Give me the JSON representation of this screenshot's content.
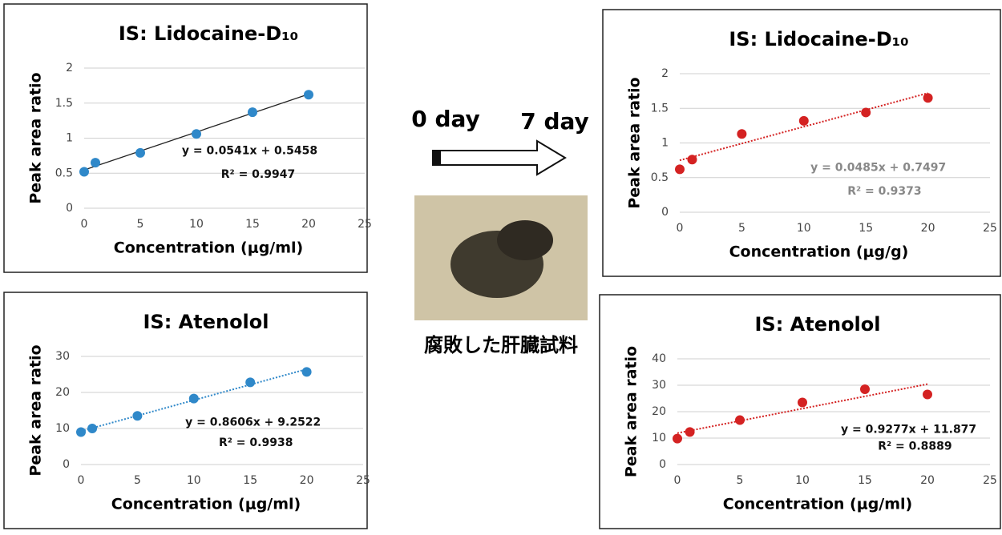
{
  "chart_data": [
    {
      "type": "scatter",
      "title": "IS: Lidocaine-D₁₀",
      "x_label": "Concentration (μg/ml)",
      "y_label": "Peak area ratio",
      "x": [
        0,
        1,
        5,
        10,
        15,
        20
      ],
      "values": [
        0.52,
        0.65,
        0.79,
        1.06,
        1.37,
        1.62
      ],
      "color": "#2f88c9",
      "xlim": [
        0,
        25
      ],
      "xticks": [
        0,
        5,
        10,
        15,
        20,
        25
      ],
      "ylim": [
        0,
        2
      ],
      "yticks": [
        0,
        0.5,
        1,
        1.5,
        2
      ],
      "grid": true,
      "trendline": {
        "slope": 0.0541,
        "intercept": 0.5458,
        "style": "solid",
        "color": "#222222"
      },
      "equation": "y = 0.0541x + 0.5458",
      "r_squared": "R² = 0.9947",
      "equation_color": "#111111"
    },
    {
      "type": "scatter",
      "title": "IS: Atenolol",
      "x_label": "Concentration (μg/ml)",
      "y_label": "Peak area ratio",
      "x": [
        0,
        1,
        5,
        10,
        15,
        20
      ],
      "values": [
        9,
        10,
        13.5,
        18.3,
        22.8,
        25.7
      ],
      "color": "#2f88c9",
      "xlim": [
        0,
        25
      ],
      "xticks": [
        0,
        5,
        10,
        15,
        20,
        25
      ],
      "ylim": [
        0,
        30
      ],
      "yticks": [
        0,
        10,
        20,
        30
      ],
      "grid": true,
      "trendline": {
        "slope": 0.8606,
        "intercept": 9.2522,
        "style": "dotted",
        "color": "#2f88c9"
      },
      "equation": "y = 0.8606x + 9.2522",
      "r_squared": "R² = 0.9938",
      "equation_color": "#111111"
    },
    {
      "type": "scatter",
      "title": "IS: Lidocaine-D₁₀",
      "x_label": "Concentration (μg/g)",
      "y_label": "Peak area ratio",
      "x": [
        0,
        1,
        5,
        10,
        15,
        20
      ],
      "values": [
        0.62,
        0.76,
        1.13,
        1.32,
        1.44,
        1.65
      ],
      "color": "#d42222",
      "xlim": [
        0,
        25
      ],
      "xticks": [
        0,
        5,
        10,
        15,
        20,
        25
      ],
      "ylim": [
        0,
        2
      ],
      "yticks": [
        0,
        0.5,
        1,
        1.5,
        2
      ],
      "grid": true,
      "trendline": {
        "slope": 0.0485,
        "intercept": 0.7497,
        "style": "dotted",
        "color": "#d42222"
      },
      "equation": "y = 0.0485x + 0.7497",
      "r_squared": "R² = 0.9373",
      "equation_color": "#888888"
    },
    {
      "type": "scatter",
      "title": "IS: Atenolol",
      "x_label": "Concentration (μg/ml)",
      "y_label": "Peak area ratio",
      "x": [
        0,
        1,
        5,
        10,
        15,
        20
      ],
      "values": [
        9.8,
        12.3,
        16.8,
        23.5,
        28.5,
        26.5
      ],
      "color": "#d42222",
      "xlim": [
        0,
        25
      ],
      "xticks": [
        0,
        5,
        10,
        15,
        20,
        25
      ],
      "ylim": [
        0,
        40
      ],
      "yticks": [
        0,
        10,
        20,
        30,
        40
      ],
      "grid": true,
      "trendline": {
        "slope": 0.9277,
        "intercept": 11.877,
        "style": "dotted",
        "color": "#d42222"
      },
      "equation": "y = 0.9277x + 11.877",
      "r_squared": "R² = 0.8889",
      "equation_color": "#111111"
    }
  ],
  "labels": {
    "start": "0 day",
    "end": "7 day",
    "caption": "腐敗した肝臓試料"
  }
}
